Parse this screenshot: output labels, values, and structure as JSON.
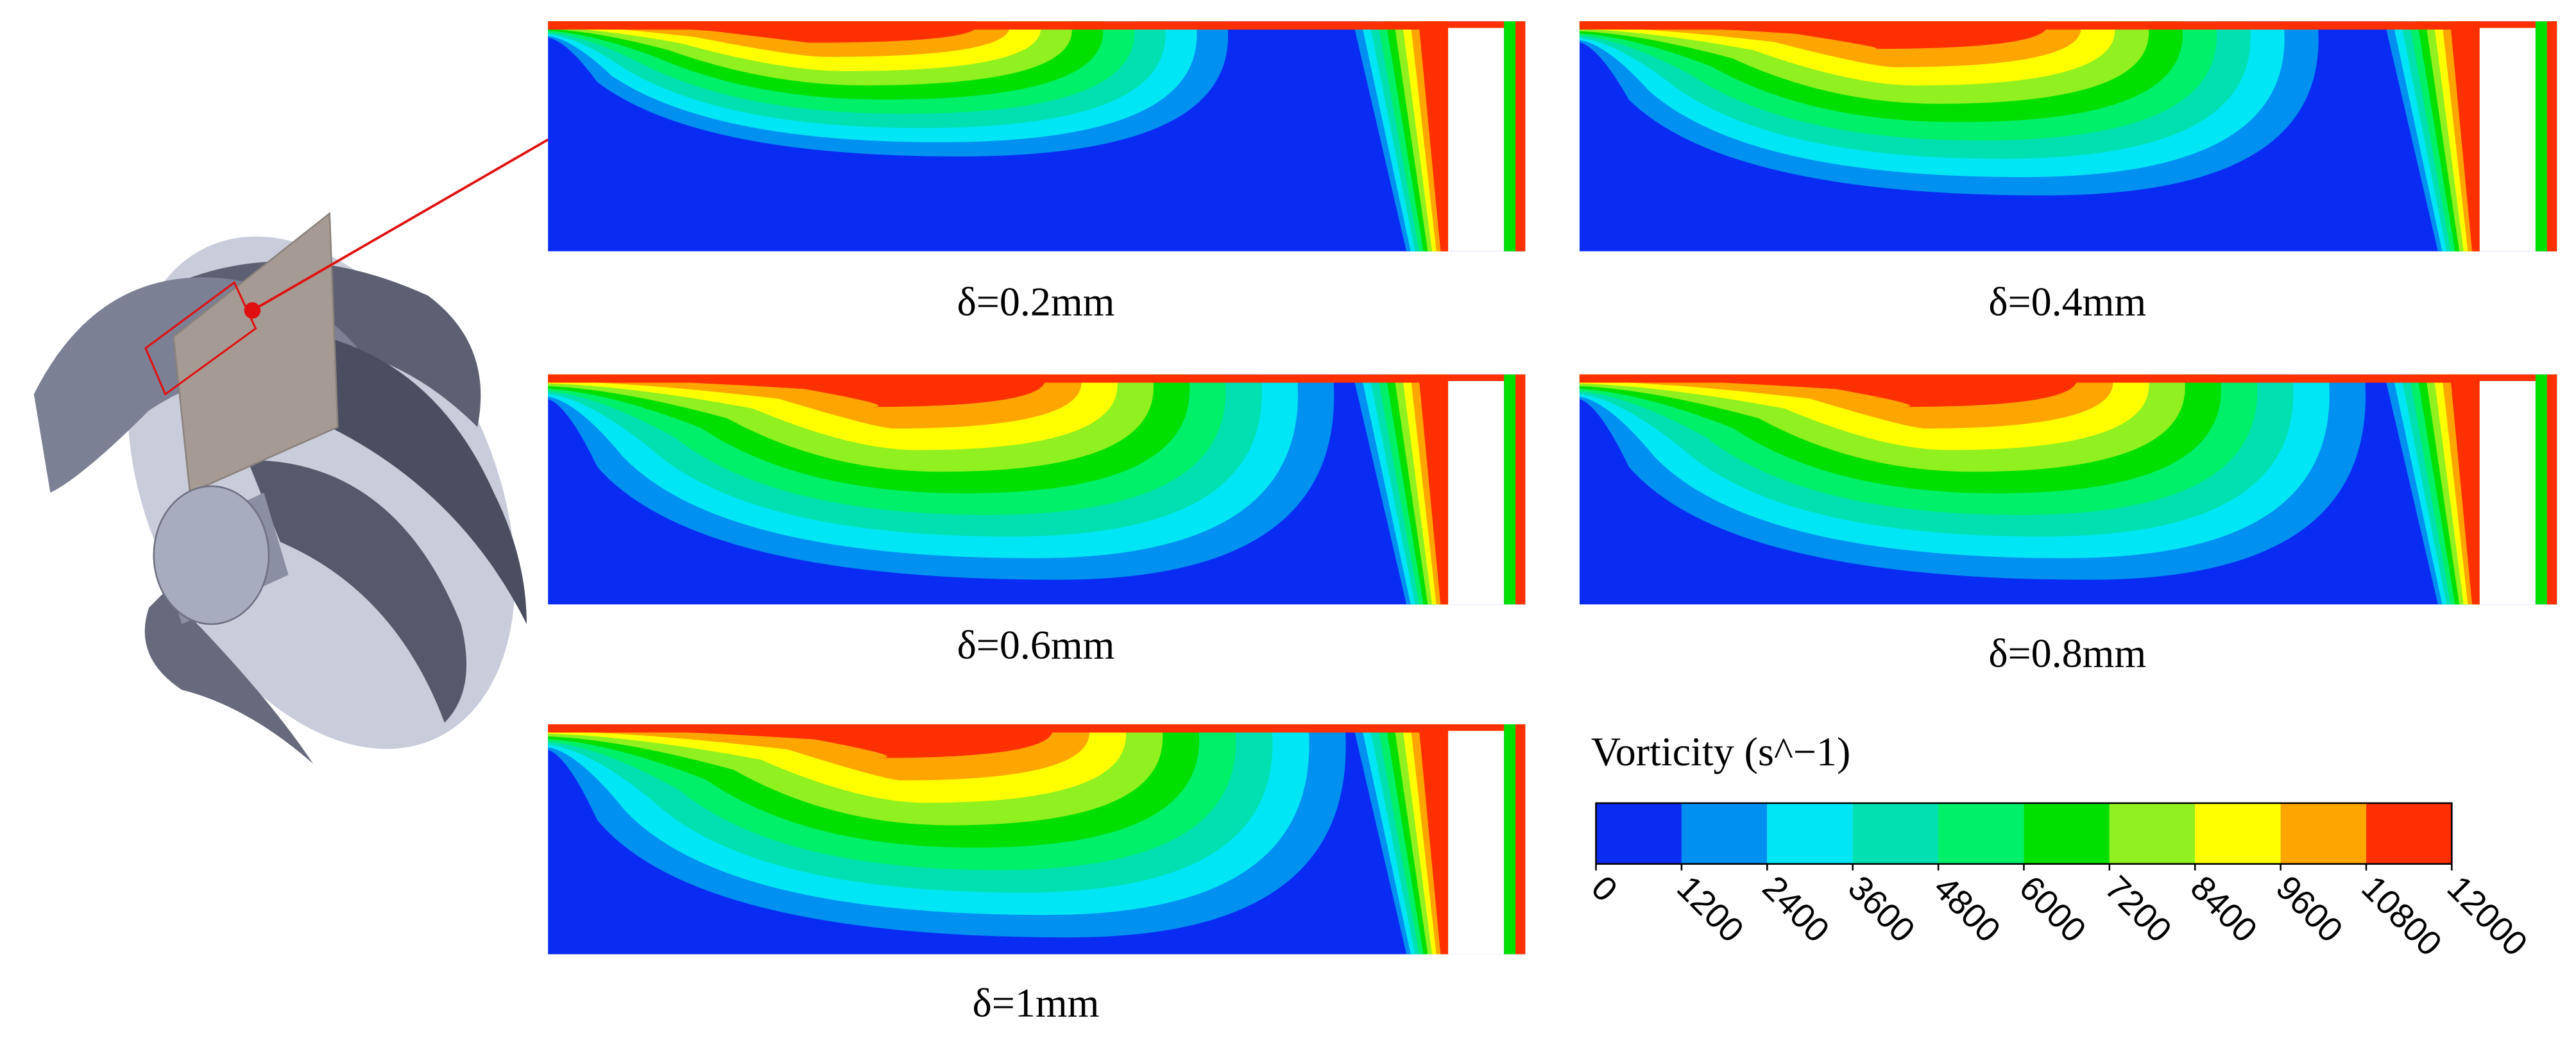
{
  "figure": {
    "panels": [
      {
        "label": "δ=0.2mm"
      },
      {
        "label": "δ=0.4mm"
      },
      {
        "label": "δ=0.6mm"
      },
      {
        "label": "δ=0.8mm"
      },
      {
        "label": "δ=1mm"
      }
    ]
  },
  "colorbar": {
    "title": "Vorticity (s^−1)",
    "lim": [
      0,
      12000
    ],
    "ticks": [
      0,
      1200,
      2400,
      3600,
      4800,
      6000,
      7200,
      8400,
      9600,
      10800,
      12000
    ],
    "colors": [
      "#0a2cf2",
      "#0090f0",
      "#00e6f5",
      "#00e0b0",
      "#00f06a",
      "#00e000",
      "#90f020",
      "#ffff00",
      "#ffa500",
      "#ff3000"
    ]
  }
}
